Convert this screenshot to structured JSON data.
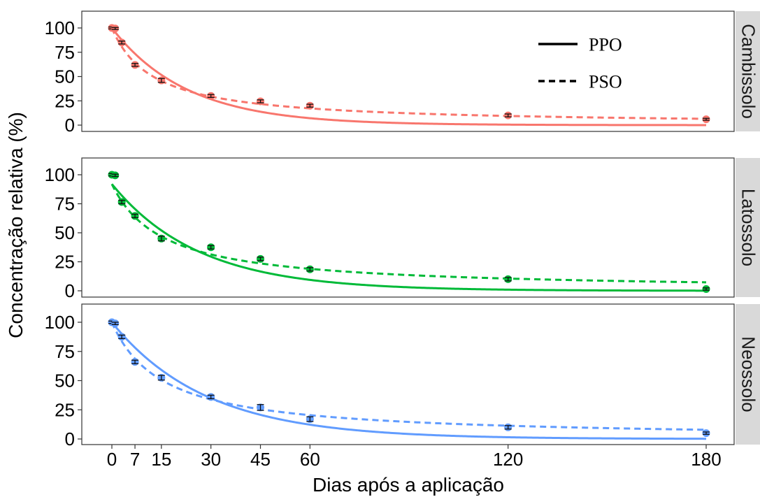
{
  "chart_data": {
    "type": "line",
    "xlabel": "Dias após a aplicação",
    "ylabel": "Concentração relativa (%)",
    "x_ticks": [
      0,
      7,
      15,
      30,
      45,
      60,
      120,
      180
    ],
    "y_ticks": [
      0,
      25,
      50,
      75,
      100
    ],
    "xlim": [
      -3,
      185
    ],
    "ylim": [
      -5,
      115
    ],
    "legend": {
      "position": "top-right of first panel",
      "entries": [
        {
          "label": "PPO",
          "linestyle": "solid"
        },
        {
          "label": "PSO",
          "linestyle": "dashed"
        }
      ]
    },
    "panels": [
      {
        "label": "Cambissolo",
        "color": "#F8766D",
        "points": {
          "x": [
            0,
            1,
            3,
            7,
            15,
            30,
            45,
            60,
            120,
            180
          ],
          "y": [
            100,
            99.5,
            85,
            62,
            46,
            30,
            24.5,
            20,
            10,
            6
          ]
        },
        "error": [
          1,
          1,
          1.5,
          1.5,
          2,
          1.5,
          1.5,
          1.5,
          1.5,
          1
        ],
        "ppo": {
          "c0": 100,
          "k": 0.044
        },
        "pso": {
          "c0": 100,
          "k": 0.0008
        }
      },
      {
        "label": "Latossolo",
        "color": "#00BA38",
        "points": {
          "x": [
            0,
            1,
            3,
            7,
            15,
            30,
            45,
            60,
            120,
            180
          ],
          "y": [
            100,
            99.5,
            76.5,
            64.5,
            45,
            37.5,
            27.5,
            18.5,
            10,
            1.5
          ]
        },
        "error": [
          1,
          1,
          1.5,
          1.5,
          2,
          1.5,
          1.5,
          1.5,
          1.5,
          1
        ],
        "ppo": {
          "c0": 92,
          "k": 0.038
        },
        "pso": {
          "c0": 92,
          "k": 0.0007
        }
      },
      {
        "label": "Neossolo",
        "color": "#619CFF",
        "points": {
          "x": [
            0,
            1,
            3,
            7,
            15,
            30,
            45,
            60,
            120,
            180
          ],
          "y": [
            100,
            99,
            87.5,
            66,
            52.5,
            36,
            27,
            17,
            10,
            5
          ]
        },
        "error": [
          1,
          1,
          1.5,
          1.5,
          2,
          1.5,
          2.5,
          2,
          1.5,
          1
        ],
        "ppo": {
          "c0": 100,
          "k": 0.035
        },
        "pso": {
          "c0": 100,
          "k": 0.00065
        }
      }
    ]
  }
}
